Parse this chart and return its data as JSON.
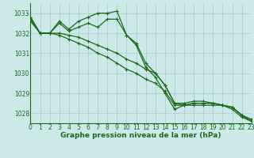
{
  "title": "Graphe pression niveau de la mer (hPa)",
  "bg_color": "#cce8e8",
  "grid_color": "#aacccc",
  "line_color": "#1a6b1a",
  "xlim": [
    0,
    23
  ],
  "ylim": [
    1027.5,
    1033.5
  ],
  "yticks": [
    1028,
    1029,
    1030,
    1031,
    1032,
    1033
  ],
  "xticks": [
    0,
    1,
    2,
    3,
    4,
    5,
    6,
    7,
    8,
    9,
    10,
    11,
    12,
    13,
    14,
    15,
    16,
    17,
    18,
    19,
    20,
    21,
    22,
    23
  ],
  "series": [
    [
      1032.8,
      1032.0,
      1032.0,
      1032.6,
      1032.2,
      1032.6,
      1032.8,
      1033.0,
      1033.0,
      1033.1,
      1031.9,
      1031.5,
      1030.5,
      1030.0,
      1029.4,
      1028.5,
      1028.5,
      1028.6,
      1028.6,
      1028.5,
      1028.4,
      1028.3,
      1027.9,
      1027.7
    ],
    [
      1032.8,
      1032.0,
      1032.0,
      1032.5,
      1032.1,
      1032.3,
      1032.5,
      1032.3,
      1032.7,
      1032.7,
      1031.9,
      1031.4,
      1030.3,
      1029.8,
      1029.0,
      1028.2,
      1028.4,
      1028.5,
      1028.5,
      1028.5,
      1028.4,
      1028.3,
      1027.9,
      1027.6
    ],
    [
      1032.7,
      1032.0,
      1032.0,
      1032.0,
      1031.9,
      1031.8,
      1031.6,
      1031.4,
      1031.2,
      1031.0,
      1030.7,
      1030.5,
      1030.2,
      1030.0,
      1029.4,
      1028.5,
      1028.4,
      1028.5,
      1028.5,
      1028.5,
      1028.4,
      1028.3,
      1027.9,
      1027.6
    ],
    [
      1032.6,
      1032.0,
      1032.0,
      1031.9,
      1031.7,
      1031.5,
      1031.3,
      1031.0,
      1030.8,
      1030.5,
      1030.2,
      1030.0,
      1029.7,
      1029.5,
      1029.1,
      1028.4,
      1028.4,
      1028.4,
      1028.4,
      1028.4,
      1028.4,
      1028.2,
      1027.8,
      1027.6
    ]
  ],
  "title_fontsize": 6.5,
  "tick_fontsize": 5.5,
  "linewidth": 0.9,
  "markersize": 2.5
}
